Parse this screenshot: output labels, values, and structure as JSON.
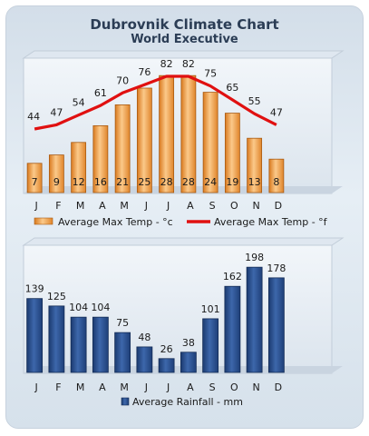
{
  "header": {
    "title": "Dubrovnik Climate Chart",
    "subtitle": "World Executive"
  },
  "colors": {
    "temp_bar": "#f3a14b",
    "temp_line": "#e01010",
    "rain_bar": "#2a4c86",
    "text": "#1a1a1a"
  },
  "chart_data": [
    {
      "type": "bar",
      "categories": [
        "J",
        "F",
        "M",
        "A",
        "M",
        "J",
        "J",
        "A",
        "S",
        "O",
        "N",
        "D"
      ],
      "series": [
        {
          "name": "Average Max Temp - °c",
          "type": "bar",
          "values": [
            7,
            9,
            12,
            16,
            21,
            25,
            28,
            28,
            24,
            19,
            13,
            8
          ]
        },
        {
          "name": "Average Max Temp - °f",
          "type": "line",
          "values": [
            44,
            47,
            54,
            61,
            70,
            76,
            82,
            82,
            75,
            65,
            55,
            47
          ]
        }
      ],
      "legend": "bottom",
      "grid": false
    },
    {
      "type": "bar",
      "categories": [
        "J",
        "F",
        "M",
        "A",
        "M",
        "J",
        "J",
        "A",
        "S",
        "O",
        "N",
        "D"
      ],
      "series": [
        {
          "name": "Average Rainfall - mm",
          "values": [
            139,
            125,
            104,
            104,
            75,
            48,
            26,
            38,
            101,
            162,
            198,
            178
          ]
        }
      ],
      "legend": "bottom",
      "grid": false
    }
  ]
}
